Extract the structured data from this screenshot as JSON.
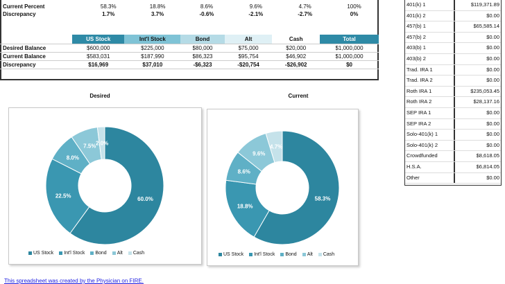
{
  "top_rows": [
    {
      "label": "Current Percent",
      "values": [
        "58.3%",
        "18.8%",
        "8.6%",
        "9.6%",
        "4.7%",
        "100%"
      ]
    },
    {
      "label": "Discrepancy",
      "values": [
        "1.7%",
        "3.7%",
        "-0.6%",
        "-2.1%",
        "-2.7%",
        "0%"
      ]
    }
  ],
  "balance_table": {
    "headers": [
      "US Stock",
      "Int'l Stock",
      "Bond",
      "Alt",
      "Cash",
      "Total"
    ],
    "header_colors": [
      "#2e8aa6",
      "#7fc3d6",
      "#b5dbe6",
      "#dff0f5",
      "#ffffff",
      "#2e8aa6"
    ],
    "rows": [
      {
        "label": "Desired Balance",
        "values": [
          "$600,000",
          "$225,000",
          "$80,000",
          "$75,000",
          "$20,000",
          "$1,000,000"
        ]
      },
      {
        "label": "Current Balance",
        "values": [
          "$583,031",
          "$187,990",
          "$86,323",
          "$95,754",
          "$46,902",
          "$1,000,000"
        ]
      },
      {
        "label": "Discrepancy",
        "values": [
          "$16,969",
          "$37,010",
          "-$6,323",
          "-$20,754",
          "-$26,902",
          "$0"
        ]
      }
    ]
  },
  "chart_data": [
    {
      "type": "pie",
      "title": "Desired",
      "categories": [
        "US Stock",
        "Int'l Stock",
        "Bond",
        "Alt",
        "Cash"
      ],
      "values": [
        60.0,
        22.5,
        8.0,
        7.5,
        2.0
      ],
      "labels": [
        "60.0%",
        "22.5%",
        "8.0%",
        "7.5%",
        "2.0%"
      ],
      "colors": [
        "#2d869f",
        "#3a97b1",
        "#5fb0c6",
        "#8cc8d8",
        "#c5e2ea"
      ],
      "legend_position": "bottom"
    },
    {
      "type": "pie",
      "title": "Current",
      "categories": [
        "US Stock",
        "Int'l Stock",
        "Bond",
        "Alt",
        "Cash"
      ],
      "values": [
        58.3,
        18.8,
        8.6,
        9.6,
        4.7
      ],
      "labels": [
        "58.3%",
        "18.8%",
        "8.6%",
        "9.6%",
        "4.7%"
      ],
      "colors": [
        "#2d869f",
        "#3a97b1",
        "#5fb0c6",
        "#8cc8d8",
        "#c5e2ea"
      ],
      "legend_position": "bottom"
    }
  ],
  "accounts": [
    {
      "name": "401(k) 1",
      "amount": "$119,371.89"
    },
    {
      "name": "401(k) 2",
      "amount": "$0.00"
    },
    {
      "name": "457(b) 1",
      "amount": "$65,585.14"
    },
    {
      "name": "457(b) 2",
      "amount": "$0.00"
    },
    {
      "name": "403(b) 1",
      "amount": "$0.00"
    },
    {
      "name": "403(b) 2",
      "amount": "$0.00"
    },
    {
      "name": "Trad. IRA 1",
      "amount": "$0.00"
    },
    {
      "name": "Trad. IRA 2",
      "amount": "$0.00"
    },
    {
      "name": "Roth IRA 1",
      "amount": "$235,053.45"
    },
    {
      "name": "Roth IRA 2",
      "amount": "$28,137.16"
    },
    {
      "name": "SEP IRA 1",
      "amount": "$0.00"
    },
    {
      "name": "SEP IRA 2",
      "amount": "$0.00"
    },
    {
      "name": "Solo-401(k) 1",
      "amount": "$0.00"
    },
    {
      "name": "Solo-401(k) 2",
      "amount": "$0.00"
    },
    {
      "name": "Crowdfunded",
      "amount": "$8,618.05"
    },
    {
      "name": "H.S.A.",
      "amount": "$6,814.05"
    },
    {
      "name": "Other",
      "amount": "$0.00"
    }
  ],
  "footer_link": "This spreadsheet was created by the Physician on FIRE."
}
